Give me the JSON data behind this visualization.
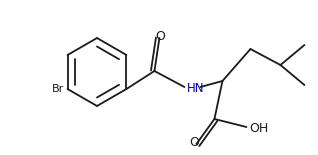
{
  "bg_color": "#ffffff",
  "bond_color": "#1a1a1a",
  "text_color": "#1a1a1a",
  "blue_color": "#0000aa",
  "figsize": [
    3.18,
    1.55
  ],
  "dpi": 100,
  "label_Br": "Br",
  "label_O": "O",
  "label_HN": "HN",
  "label_OH": "OH"
}
